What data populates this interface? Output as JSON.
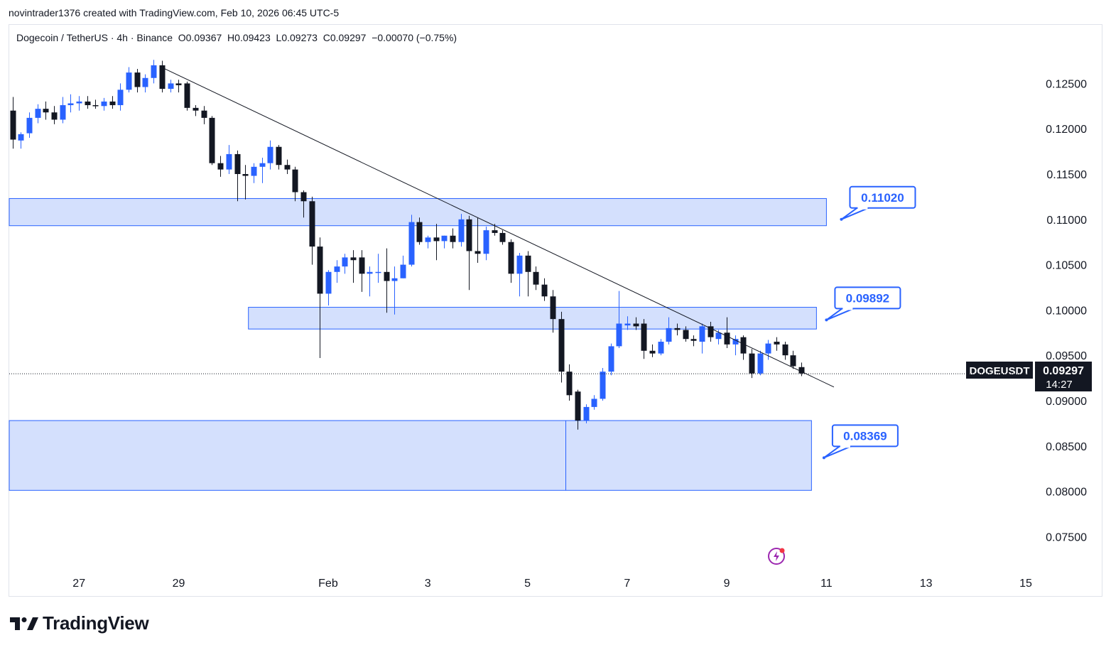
{
  "header": {
    "attribution": "novintrader1376 created with TradingView.com, Feb 10, 2026 06:45 UTC-5"
  },
  "legend": {
    "symbol": "Dogecoin / TetherUS · 4h · Binance",
    "ohlc": "O0.09367  H0.09423  L0.09273  C0.09297  −0.00070 (−0.75%)"
  },
  "branding": {
    "logo_text": "TradingView",
    "logo_icon": "tradingview-logo-icon"
  },
  "price_badge": {
    "symbol": "DOGEUSDT",
    "price": "0.09297",
    "countdown": "14:27"
  },
  "colors": {
    "up": "#2962ff",
    "down": "#131722",
    "zone_fill": "#d4e0fd",
    "zone_border": "#2962ff"
  },
  "chart_data": {
    "type": "candlestick",
    "y_axis": {
      "range": [
        0.0715,
        0.1295
      ],
      "ticks": [
        "0.12500",
        "0.12000",
        "0.11500",
        "0.11000",
        "0.10500",
        "0.10000",
        "0.09500",
        "0.09000",
        "0.08500",
        "0.08000",
        "0.07500"
      ]
    },
    "x_axis": {
      "range_days": [
        25.6,
        46.1
      ],
      "ticks": [
        {
          "day": 27,
          "label": "27"
        },
        {
          "day": 29,
          "label": "29"
        },
        {
          "day": 32,
          "label": "Feb"
        },
        {
          "day": 34,
          "label": "3"
        },
        {
          "day": 36,
          "label": "5"
        },
        {
          "day": 38,
          "label": "7"
        },
        {
          "day": 40,
          "label": "9"
        },
        {
          "day": 42,
          "label": "11"
        },
        {
          "day": 44,
          "label": "13"
        },
        {
          "day": 46,
          "label": "15"
        }
      ]
    },
    "zones": [
      {
        "name": "resistance-zone-upper",
        "low": 0.1093,
        "high": 0.1123,
        "day_start": 25.6,
        "day_end": 42.0,
        "label": "0.11020"
      },
      {
        "name": "resistance-zone-middle",
        "low": 0.0979,
        "high": 0.1003,
        "day_start": 30.4,
        "day_end": 41.8,
        "label": "0.09892"
      },
      {
        "name": "support-zone-lower",
        "low": 0.0801,
        "high": 0.0878,
        "day_start": 25.6,
        "day_end": 41.7,
        "label": "0.08369"
      }
    ],
    "trendline": {
      "start": {
        "day": 28.65,
        "price": 0.1268
      },
      "end": {
        "day": 42.15,
        "price": 0.0915
      }
    },
    "callouts": [
      {
        "label": "0.11020",
        "anchor": {
          "day": 42.3,
          "price": 0.11
        }
      },
      {
        "label": "0.09892",
        "anchor": {
          "day": 42.0,
          "price": 0.0989
        }
      },
      {
        "label": "0.08369",
        "anchor": {
          "day": 41.95,
          "price": 0.0837
        }
      }
    ],
    "last_price": 0.09297,
    "candles": [
      {
        "d": 25.67,
        "o": 0.122,
        "h": 0.1235,
        "l": 0.1178,
        "c": 0.1188
      },
      {
        "d": 25.83,
        "o": 0.1187,
        "h": 0.1196,
        "l": 0.1178,
        "c": 0.1194
      },
      {
        "d": 26.0,
        "o": 0.1195,
        "h": 0.1218,
        "l": 0.119,
        "c": 0.1212
      },
      {
        "d": 26.17,
        "o": 0.1212,
        "h": 0.1227,
        "l": 0.1206,
        "c": 0.1222
      },
      {
        "d": 26.33,
        "o": 0.1222,
        "h": 0.123,
        "l": 0.121,
        "c": 0.1218
      },
      {
        "d": 26.5,
        "o": 0.1218,
        "h": 0.1225,
        "l": 0.1205,
        "c": 0.121
      },
      {
        "d": 26.67,
        "o": 0.121,
        "h": 0.1235,
        "l": 0.1206,
        "c": 0.1226
      },
      {
        "d": 26.83,
        "o": 0.1226,
        "h": 0.1238,
        "l": 0.1218,
        "c": 0.1228
      },
      {
        "d": 27.0,
        "o": 0.1228,
        "h": 0.1236,
        "l": 0.122,
        "c": 0.123
      },
      {
        "d": 27.17,
        "o": 0.123,
        "h": 0.1236,
        "l": 0.1222,
        "c": 0.1226
      },
      {
        "d": 27.33,
        "o": 0.1226,
        "h": 0.1232,
        "l": 0.1222,
        "c": 0.1225
      },
      {
        "d": 27.5,
        "o": 0.1225,
        "h": 0.1234,
        "l": 0.122,
        "c": 0.123
      },
      {
        "d": 27.67,
        "o": 0.123,
        "h": 0.1236,
        "l": 0.1222,
        "c": 0.1226
      },
      {
        "d": 27.83,
        "o": 0.1226,
        "h": 0.125,
        "l": 0.122,
        "c": 0.1243
      },
      {
        "d": 28.0,
        "o": 0.1243,
        "h": 0.1268,
        "l": 0.124,
        "c": 0.1262
      },
      {
        "d": 28.17,
        "o": 0.1262,
        "h": 0.1266,
        "l": 0.124,
        "c": 0.1246
      },
      {
        "d": 28.33,
        "o": 0.1246,
        "h": 0.126,
        "l": 0.124,
        "c": 0.1256
      },
      {
        "d": 28.5,
        "o": 0.1256,
        "h": 0.1276,
        "l": 0.125,
        "c": 0.127
      },
      {
        "d": 28.67,
        "o": 0.127,
        "h": 0.1275,
        "l": 0.124,
        "c": 0.1244
      },
      {
        "d": 28.83,
        "o": 0.1244,
        "h": 0.1254,
        "l": 0.124,
        "c": 0.125
      },
      {
        "d": 29.0,
        "o": 0.125,
        "h": 0.1254,
        "l": 0.124,
        "c": 0.1248
      },
      {
        "d": 29.17,
        "o": 0.125,
        "h": 0.1252,
        "l": 0.122,
        "c": 0.1223
      },
      {
        "d": 29.33,
        "o": 0.1223,
        "h": 0.1226,
        "l": 0.1214,
        "c": 0.122
      },
      {
        "d": 29.5,
        "o": 0.122,
        "h": 0.1225,
        "l": 0.1205,
        "c": 0.1212
      },
      {
        "d": 29.67,
        "o": 0.1212,
        "h": 0.1214,
        "l": 0.116,
        "c": 0.1162
      },
      {
        "d": 29.83,
        "o": 0.1162,
        "h": 0.117,
        "l": 0.1147,
        "c": 0.1155
      },
      {
        "d": 30.0,
        "o": 0.1155,
        "h": 0.1182,
        "l": 0.115,
        "c": 0.1172
      },
      {
        "d": 30.17,
        "o": 0.1172,
        "h": 0.1176,
        "l": 0.112,
        "c": 0.115
      },
      {
        "d": 30.33,
        "o": 0.115,
        "h": 0.116,
        "l": 0.1122,
        "c": 0.1148
      },
      {
        "d": 30.5,
        "o": 0.1148,
        "h": 0.1162,
        "l": 0.114,
        "c": 0.1158
      },
      {
        "d": 30.67,
        "o": 0.1158,
        "h": 0.1168,
        "l": 0.114,
        "c": 0.1162
      },
      {
        "d": 30.83,
        "o": 0.1162,
        "h": 0.1187,
        "l": 0.1155,
        "c": 0.118
      },
      {
        "d": 31.0,
        "o": 0.118,
        "h": 0.1182,
        "l": 0.1155,
        "c": 0.116
      },
      {
        "d": 31.17,
        "o": 0.116,
        "h": 0.1166,
        "l": 0.115,
        "c": 0.1155
      },
      {
        "d": 31.33,
        "o": 0.1155,
        "h": 0.1158,
        "l": 0.112,
        "c": 0.113
      },
      {
        "d": 31.5,
        "o": 0.113,
        "h": 0.1132,
        "l": 0.1102,
        "c": 0.112
      },
      {
        "d": 31.67,
        "o": 0.112,
        "h": 0.1125,
        "l": 0.105,
        "c": 0.107
      },
      {
        "d": 31.83,
        "o": 0.107,
        "h": 0.108,
        "l": 0.0947,
        "c": 0.1018
      },
      {
        "d": 32.0,
        "o": 0.1018,
        "h": 0.1044,
        "l": 0.1005,
        "c": 0.1042
      },
      {
        "d": 32.17,
        "o": 0.1042,
        "h": 0.1055,
        "l": 0.103,
        "c": 0.1048
      },
      {
        "d": 32.33,
        "o": 0.1048,
        "h": 0.1062,
        "l": 0.104,
        "c": 0.1058
      },
      {
        "d": 32.5,
        "o": 0.1058,
        "h": 0.1066,
        "l": 0.103,
        "c": 0.1055
      },
      {
        "d": 32.67,
        "o": 0.1058,
        "h": 0.1066,
        "l": 0.102,
        "c": 0.104
      },
      {
        "d": 32.83,
        "o": 0.104,
        "h": 0.1048,
        "l": 0.1015,
        "c": 0.1042
      },
      {
        "d": 33.0,
        "o": 0.1042,
        "h": 0.1062,
        "l": 0.103,
        "c": 0.1042
      },
      {
        "d": 33.17,
        "o": 0.1042,
        "h": 0.1068,
        "l": 0.0997,
        "c": 0.1032
      },
      {
        "d": 33.33,
        "o": 0.1032,
        "h": 0.1048,
        "l": 0.0995,
        "c": 0.1035
      },
      {
        "d": 33.5,
        "o": 0.1035,
        "h": 0.106,
        "l": 0.1035,
        "c": 0.105
      },
      {
        "d": 33.67,
        "o": 0.105,
        "h": 0.1105,
        "l": 0.1048,
        "c": 0.1097
      },
      {
        "d": 33.83,
        "o": 0.1097,
        "h": 0.1102,
        "l": 0.1072,
        "c": 0.1075
      },
      {
        "d": 34.0,
        "o": 0.1075,
        "h": 0.1082,
        "l": 0.1068,
        "c": 0.108
      },
      {
        "d": 34.17,
        "o": 0.108,
        "h": 0.1095,
        "l": 0.1055,
        "c": 0.1076
      },
      {
        "d": 34.33,
        "o": 0.1076,
        "h": 0.1082,
        "l": 0.1068,
        "c": 0.1082
      },
      {
        "d": 34.5,
        "o": 0.1082,
        "h": 0.109,
        "l": 0.1068,
        "c": 0.1075
      },
      {
        "d": 34.67,
        "o": 0.1075,
        "h": 0.1106,
        "l": 0.107,
        "c": 0.11
      },
      {
        "d": 34.83,
        "o": 0.11,
        "h": 0.1104,
        "l": 0.1022,
        "c": 0.1065
      },
      {
        "d": 35.0,
        "o": 0.1065,
        "h": 0.1102,
        "l": 0.1052,
        "c": 0.1062
      },
      {
        "d": 35.17,
        "o": 0.1062,
        "h": 0.1092,
        "l": 0.1055,
        "c": 0.1088
      },
      {
        "d": 35.33,
        "o": 0.1088,
        "h": 0.1095,
        "l": 0.1082,
        "c": 0.1085
      },
      {
        "d": 35.5,
        "o": 0.1085,
        "h": 0.1088,
        "l": 0.1072,
        "c": 0.1075
      },
      {
        "d": 35.67,
        "o": 0.1075,
        "h": 0.1078,
        "l": 0.103,
        "c": 0.104
      },
      {
        "d": 35.83,
        "o": 0.104,
        "h": 0.1063,
        "l": 0.1015,
        "c": 0.106
      },
      {
        "d": 36.0,
        "o": 0.106,
        "h": 0.1065,
        "l": 0.1015,
        "c": 0.1042
      },
      {
        "d": 36.17,
        "o": 0.1042,
        "h": 0.1048,
        "l": 0.1022,
        "c": 0.1028
      },
      {
        "d": 36.33,
        "o": 0.1028,
        "h": 0.1035,
        "l": 0.101,
        "c": 0.1015
      },
      {
        "d": 36.5,
        "o": 0.1015,
        "h": 0.1022,
        "l": 0.0975,
        "c": 0.099
      },
      {
        "d": 36.67,
        "o": 0.099,
        "h": 0.0998,
        "l": 0.092,
        "c": 0.0932
      },
      {
        "d": 36.83,
        "o": 0.0932,
        "h": 0.094,
        "l": 0.09,
        "c": 0.0906
      },
      {
        "d": 37.0,
        "o": 0.091,
        "h": 0.0912,
        "l": 0.0868,
        "c": 0.0878
      },
      {
        "d": 37.17,
        "o": 0.0878,
        "h": 0.0896,
        "l": 0.0875,
        "c": 0.0893
      },
      {
        "d": 37.33,
        "o": 0.0893,
        "h": 0.0906,
        "l": 0.089,
        "c": 0.0902
      },
      {
        "d": 37.5,
        "o": 0.0902,
        "h": 0.0936,
        "l": 0.09,
        "c": 0.0932
      },
      {
        "d": 37.67,
        "o": 0.0932,
        "h": 0.0963,
        "l": 0.0928,
        "c": 0.096
      },
      {
        "d": 37.83,
        "o": 0.096,
        "h": 0.1021,
        "l": 0.0958,
        "c": 0.0985
      },
      {
        "d": 38.0,
        "o": 0.0983,
        "h": 0.0993,
        "l": 0.0978,
        "c": 0.0985
      },
      {
        "d": 38.17,
        "o": 0.0985,
        "h": 0.0992,
        "l": 0.0978,
        "c": 0.0982
      },
      {
        "d": 38.33,
        "o": 0.0985,
        "h": 0.099,
        "l": 0.0946,
        "c": 0.0955
      },
      {
        "d": 38.5,
        "o": 0.0955,
        "h": 0.0962,
        "l": 0.0948,
        "c": 0.0952
      },
      {
        "d": 38.67,
        "o": 0.0952,
        "h": 0.0968,
        "l": 0.095,
        "c": 0.0965
      },
      {
        "d": 38.83,
        "o": 0.0965,
        "h": 0.0992,
        "l": 0.0962,
        "c": 0.098
      },
      {
        "d": 39.0,
        "o": 0.098,
        "h": 0.0985,
        "l": 0.0972,
        "c": 0.0978
      },
      {
        "d": 39.17,
        "o": 0.0978,
        "h": 0.0982,
        "l": 0.0965,
        "c": 0.0968
      },
      {
        "d": 39.33,
        "o": 0.0968,
        "h": 0.0972,
        "l": 0.096,
        "c": 0.0966
      },
      {
        "d": 39.5,
        "o": 0.0965,
        "h": 0.0985,
        "l": 0.0952,
        "c": 0.0982
      },
      {
        "d": 39.67,
        "o": 0.0982,
        "h": 0.0987,
        "l": 0.0965,
        "c": 0.097
      },
      {
        "d": 39.83,
        "o": 0.0968,
        "h": 0.0978,
        "l": 0.0962,
        "c": 0.0975
      },
      {
        "d": 40.0,
        "o": 0.0975,
        "h": 0.0992,
        "l": 0.0958,
        "c": 0.0962
      },
      {
        "d": 40.17,
        "o": 0.0962,
        "h": 0.0972,
        "l": 0.095,
        "c": 0.0968
      },
      {
        "d": 40.33,
        "o": 0.097,
        "h": 0.0972,
        "l": 0.0945,
        "c": 0.0952
      },
      {
        "d": 40.5,
        "o": 0.0952,
        "h": 0.0957,
        "l": 0.0925,
        "c": 0.093
      },
      {
        "d": 40.67,
        "o": 0.093,
        "h": 0.0955,
        "l": 0.0928,
        "c": 0.0952
      },
      {
        "d": 40.83,
        "o": 0.0952,
        "h": 0.0967,
        "l": 0.0945,
        "c": 0.0963
      },
      {
        "d": 41.0,
        "o": 0.0965,
        "h": 0.097,
        "l": 0.0955,
        "c": 0.0962
      },
      {
        "d": 41.17,
        "o": 0.0962,
        "h": 0.0965,
        "l": 0.0945,
        "c": 0.095
      },
      {
        "d": 41.33,
        "o": 0.095,
        "h": 0.0955,
        "l": 0.0935,
        "c": 0.0938
      },
      {
        "d": 41.5,
        "o": 0.0937,
        "h": 0.0942,
        "l": 0.0927,
        "c": 0.093
      }
    ]
  }
}
